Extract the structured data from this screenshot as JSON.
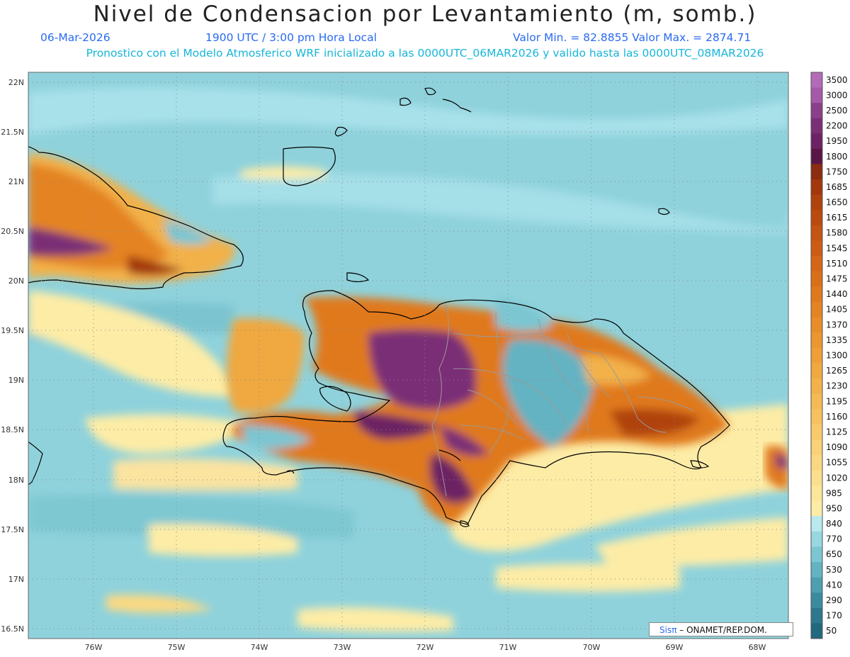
{
  "header": {
    "title": "Nivel de Condensacion por Levantamiento (m, somb.)",
    "date": "06-Mar-2026",
    "time": "1900 UTC / 3:00 pm Hora Local",
    "minmax": "Valor Min. = 82.8855   Valor Max. = 2874.71",
    "model_line": "Pronostico con el Modelo Atmosferico WRF inicializado a las 0000UTC_06MAR2026 y valido hasta las  0000UTC_08MAR2026"
  },
  "map": {
    "lat_labels": [
      "22N",
      "21.5N",
      "21N",
      "20.5N",
      "20N",
      "19.5N",
      "19N",
      "18.5N",
      "18N",
      "17.5N",
      "17N",
      "16.5N"
    ],
    "lon_labels": [
      "76W",
      "75W",
      "74W",
      "73W",
      "72W",
      "71W",
      "70W",
      "69W",
      "68W"
    ]
  },
  "colorbar": {
    "levels": [
      "3500",
      "3000",
      "2500",
      "2200",
      "1950",
      "1800",
      "1750",
      "1685",
      "1650",
      "1615",
      "1580",
      "1545",
      "1510",
      "1475",
      "1440",
      "1405",
      "1370",
      "1335",
      "1300",
      "1265",
      "1230",
      "1195",
      "1160",
      "1125",
      "1090",
      "1055",
      "1020",
      "985",
      "950",
      "840",
      "770",
      "650",
      "530",
      "410",
      "290",
      "170",
      "50"
    ],
    "colors": [
      "#b36bb8",
      "#a55aa8",
      "#8a3f8a",
      "#7a2e76",
      "#6c2264",
      "#5a1646",
      "#8c2c10",
      "#a2380c",
      "#b0420d",
      "#ba4a0f",
      "#c45412",
      "#cc5c14",
      "#d46617",
      "#da6f1a",
      "#e0791e",
      "#e48323",
      "#e88d29",
      "#eb9630",
      "#ee9f38",
      "#f0a840",
      "#f2b14a",
      "#f4ba55",
      "#f6c260",
      "#f8ca6b",
      "#f9d176",
      "#fad882",
      "#fbdf8e",
      "#fce69a",
      "#fdeca6",
      "#b9e9ef",
      "#97d7e0",
      "#7cc6d2",
      "#63b3c2",
      "#4d9fb1",
      "#3b8b9f",
      "#2d788e",
      "#22687e"
    ]
  },
  "credit": {
    "brand": "Sisπ",
    "text": " – ONAMET/REP.DOM."
  }
}
